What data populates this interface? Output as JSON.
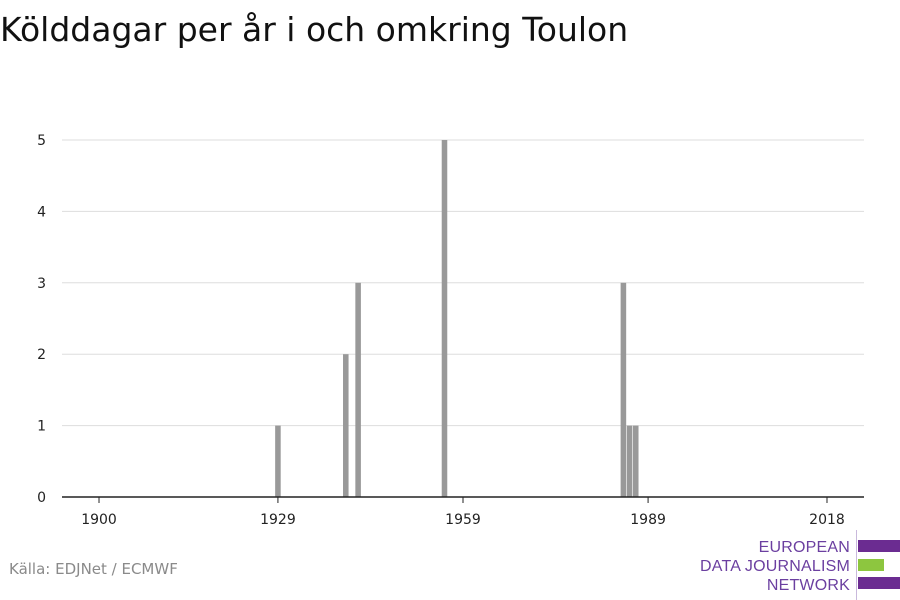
{
  "title": "Kölddagar per år i och omkring Toulon",
  "source": "Källa: EDJNet / ECMWF",
  "logo": {
    "lines": [
      "EUROPEAN",
      "DATA JOURNALISM",
      "NETWORK"
    ],
    "colors": {
      "purple": "#6b2c91",
      "green": "#8dc63f"
    }
  },
  "colors": {
    "bar": "#999999",
    "grid": "#dddddd",
    "axis": "#222222"
  },
  "chart_data": {
    "type": "bar",
    "title": "Kölddagar per år i och omkring Toulon",
    "xlabel": "",
    "ylabel": "",
    "x_ticks": [
      1900,
      1929,
      1959,
      1989,
      2018
    ],
    "y_ticks": [
      0,
      1,
      2,
      3,
      4,
      5
    ],
    "xlim": [
      1894,
      2024
    ],
    "ylim": [
      0,
      5
    ],
    "grid": true,
    "x": [
      1929,
      1940,
      1942,
      1956,
      1985,
      1986,
      1987
    ],
    "values": [
      1,
      2,
      3,
      5,
      3,
      1,
      1
    ]
  }
}
